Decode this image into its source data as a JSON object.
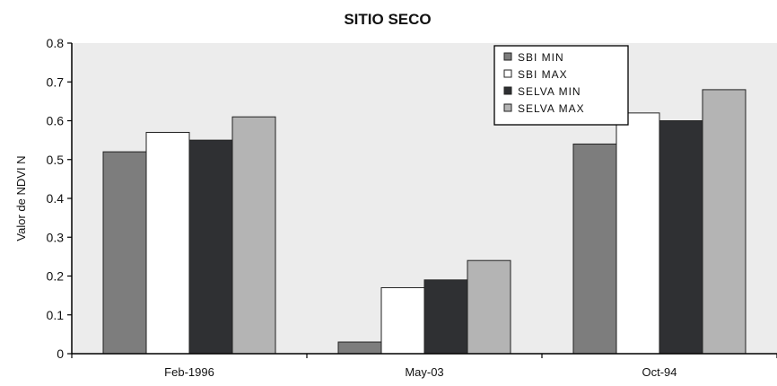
{
  "chart_data": {
    "type": "bar",
    "title": "SITIO SECO",
    "xlabel": "",
    "ylabel": "Valor de NDVI N",
    "ylim": [
      0,
      0.8
    ],
    "yticks": [
      "0",
      "0.1",
      "0.2",
      "0.3",
      "0.4",
      "0.5",
      "0.6",
      "0.7",
      "0.8"
    ],
    "categories": [
      "Feb-1996",
      "May-03",
      "Oct-94"
    ],
    "series": [
      {
        "name": "SBI MIN",
        "values": [
          0.52,
          0.03,
          0.54
        ],
        "color": "#7d7d7d"
      },
      {
        "name": "SBI MAX",
        "values": [
          0.57,
          0.17,
          0.62
        ],
        "color": "#ffffff"
      },
      {
        "name": "SELVA MIN",
        "values": [
          0.55,
          0.19,
          0.6
        ],
        "color": "#2f3033"
      },
      {
        "name": "SELVA MAX",
        "values": [
          0.61,
          0.24,
          0.68
        ],
        "color": "#b4b4b4"
      }
    ],
    "legend_position": "top-right",
    "grid": false,
    "plot_background": "#ececec"
  }
}
